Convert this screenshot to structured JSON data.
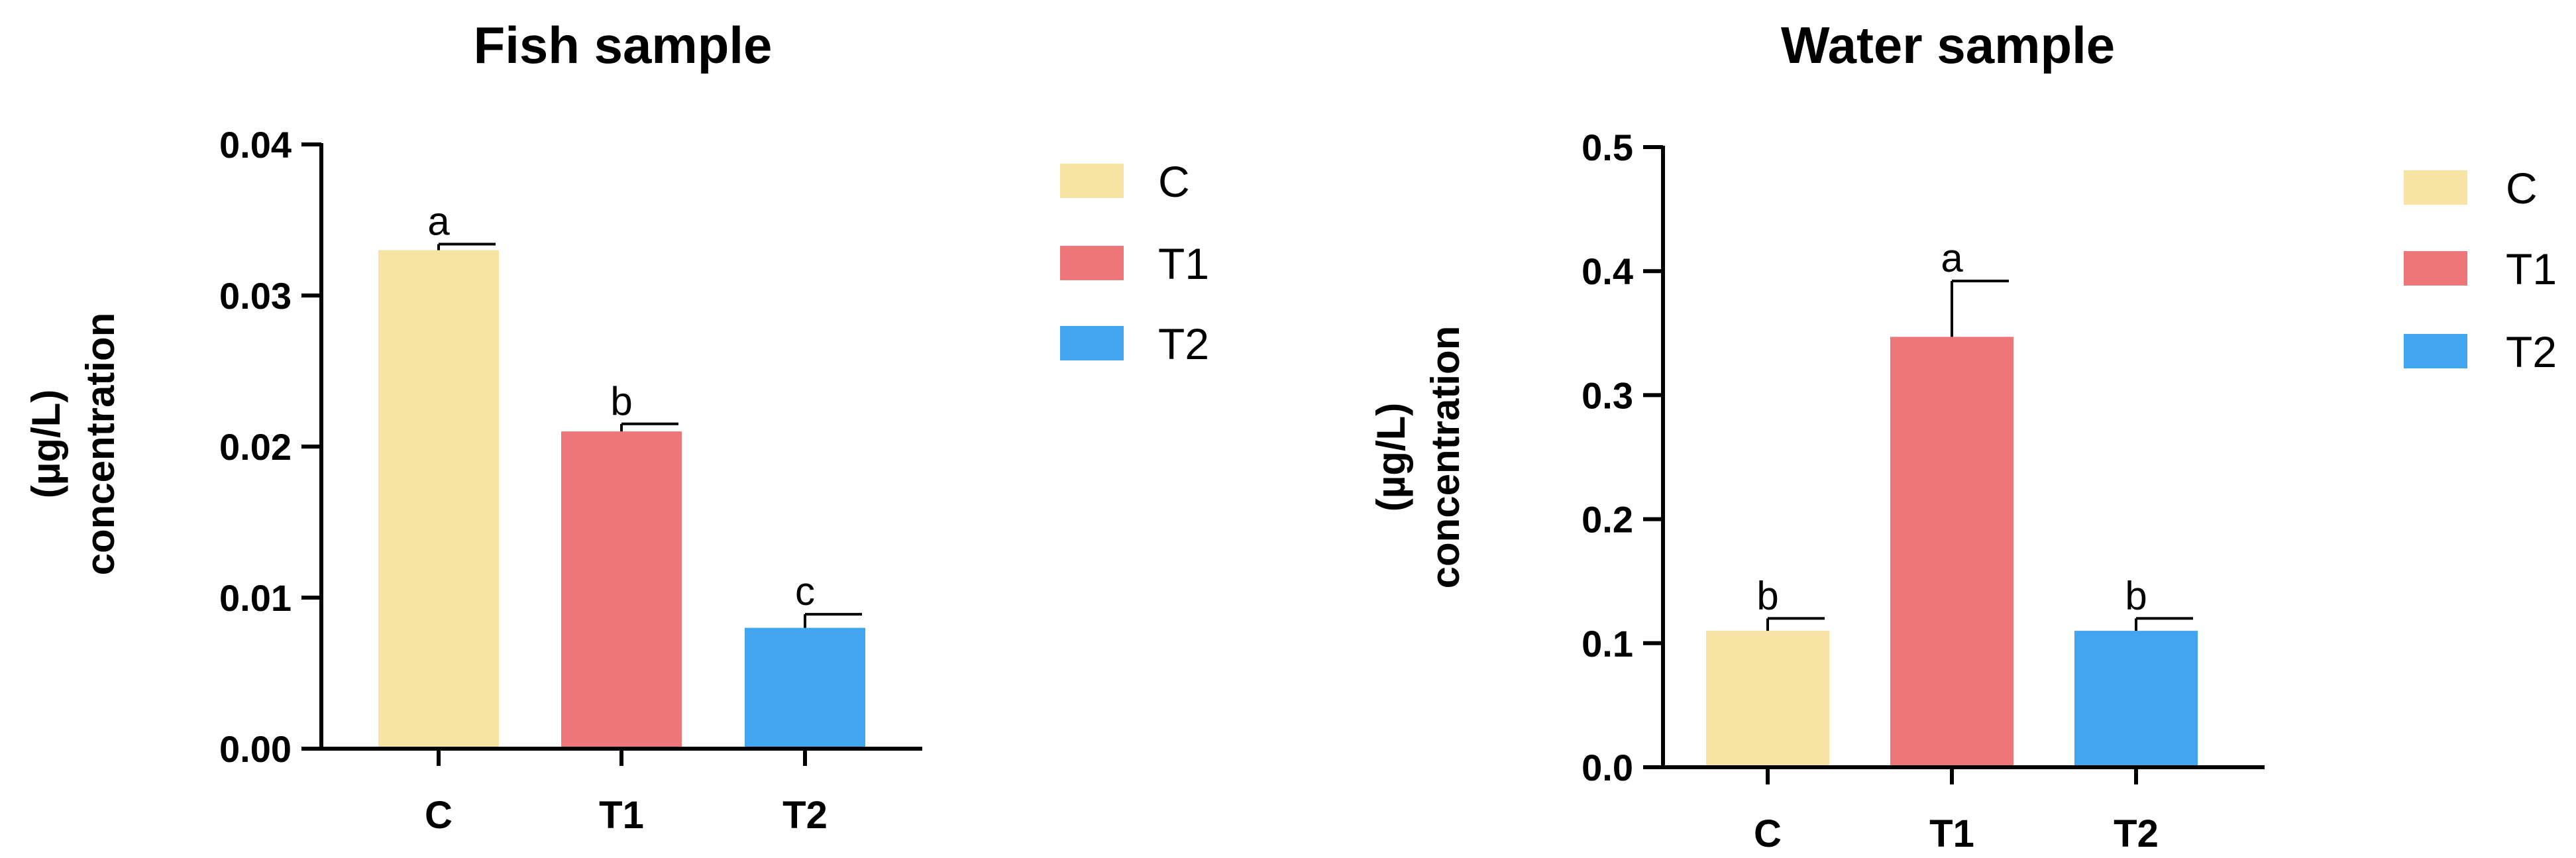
{
  "chart_data": [
    {
      "type": "bar",
      "title": "Fish sample",
      "ylabel_line1": "(µg/L)",
      "ylabel_line2": "concentration",
      "categories": [
        "C",
        "T1",
        "T2"
      ],
      "values": [
        0.033,
        0.021,
        0.008
      ],
      "errors": [
        0.0004,
        0.0005,
        0.0009
      ],
      "significance": [
        "a",
        "b",
        "c"
      ],
      "ylim": [
        0,
        0.04
      ],
      "yticks": [
        "0.00",
        "0.01",
        "0.02",
        "0.03",
        "0.04"
      ],
      "colors": [
        "#f7e3a4",
        "#ee7578",
        "#42a5ef"
      ],
      "legend": [
        "C",
        "T1",
        "T2"
      ],
      "legend_position": "right",
      "grid": false
    },
    {
      "type": "bar",
      "title": "Water sample",
      "ylabel_line1": "(µg/L)",
      "ylabel_line2": "concentration",
      "categories": [
        "C",
        "T1",
        "T2"
      ],
      "values": [
        0.11,
        0.347,
        0.11
      ],
      "errors": [
        0.01,
        0.045,
        0.01
      ],
      "significance": [
        "b",
        "a",
        "b"
      ],
      "ylim": [
        0,
        0.5
      ],
      "yticks": [
        "0.0",
        "0.1",
        "0.2",
        "0.3",
        "0.4",
        "0.5"
      ],
      "colors": [
        "#f7e3a4",
        "#ee7578",
        "#42a5ef"
      ],
      "legend": [
        "C",
        "T1",
        "T2"
      ],
      "legend_position": "right",
      "grid": false
    }
  ]
}
